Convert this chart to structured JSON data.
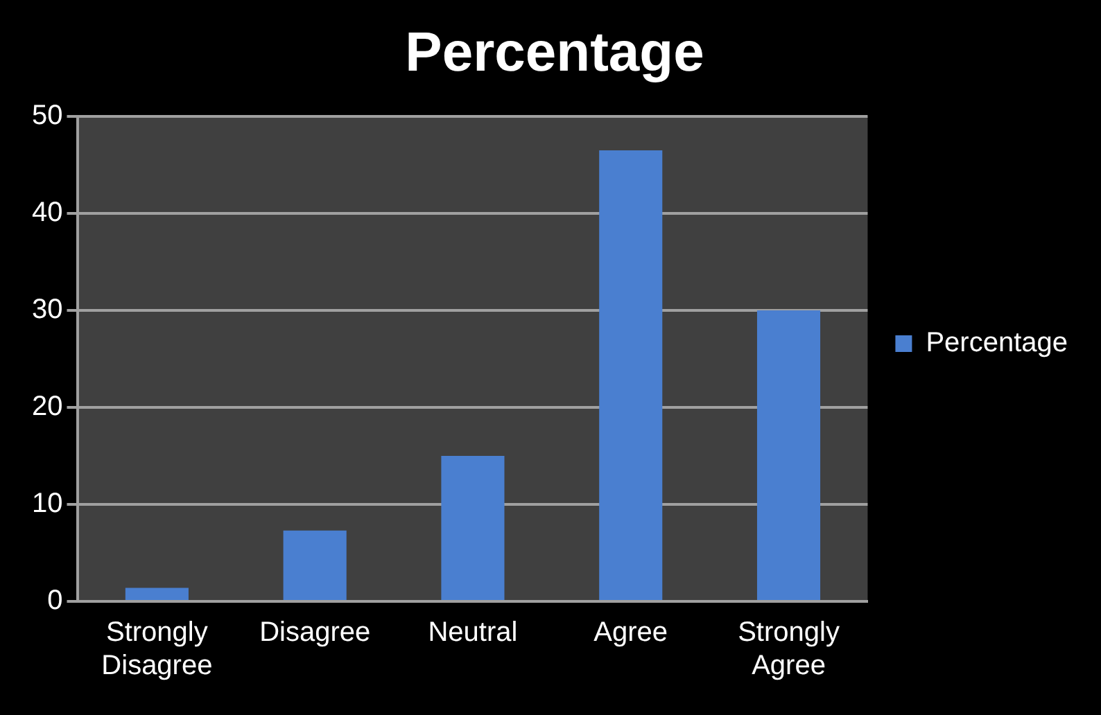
{
  "chart_data": {
    "type": "bar",
    "title": "Percentage",
    "categories": [
      "Strongly Disagree",
      "Disagree",
      "Neutral",
      "Agree",
      "Strongly Agree"
    ],
    "series": [
      {
        "name": "Percentage",
        "color": "#4a7fd0",
        "values": [
          1.4,
          7.3,
          15,
          46.5,
          30
        ]
      }
    ],
    "ylim": [
      0,
      50
    ],
    "yticks": [
      0,
      10,
      20,
      30,
      40,
      50
    ],
    "grid": "y",
    "legend": "right"
  }
}
